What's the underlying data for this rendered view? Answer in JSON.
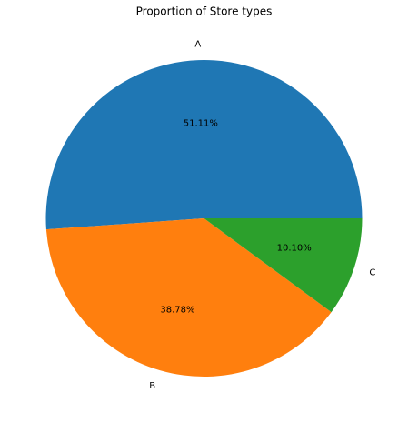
{
  "chart_data": {
    "type": "pie",
    "title": "Proportion of Store types",
    "categories": [
      "A",
      "B",
      "C"
    ],
    "values": [
      51.11,
      38.78,
      10.1
    ],
    "value_labels": [
      "51.11%",
      "38.78%",
      "10.10%"
    ],
    "colors": [
      "#1f77b4",
      "#ff7f0e",
      "#2ca02c"
    ]
  }
}
